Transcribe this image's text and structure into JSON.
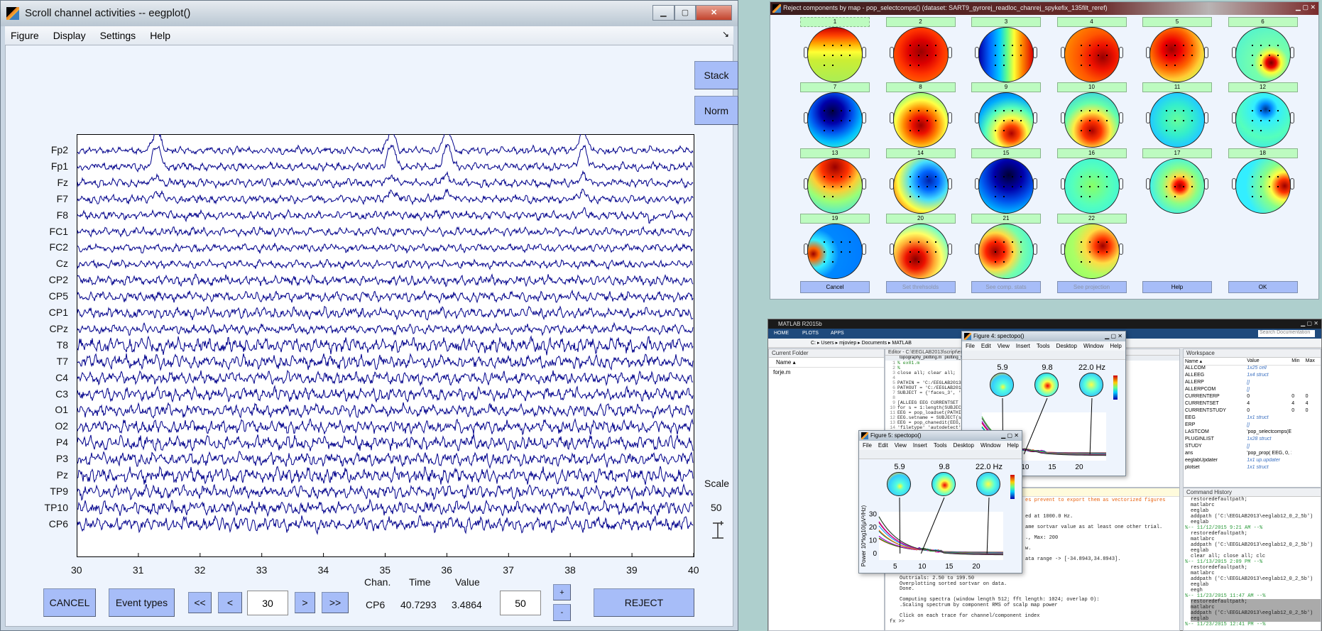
{
  "eegplot": {
    "title": "Scroll channel activities -- eegplot()",
    "menu": [
      "Figure",
      "Display",
      "Settings",
      "Help"
    ],
    "stack_label": "Stack",
    "norm_label": "Norm",
    "channels": [
      "Fp2",
      "Fp1",
      "Fz",
      "F7",
      "F8",
      "FC1",
      "FC2",
      "Cz",
      "CP2",
      "CP5",
      "CP1",
      "CPz",
      "T8",
      "T7",
      "C4",
      "C3",
      "O1",
      "O2",
      "P4",
      "P3",
      "Pz",
      "TP9",
      "TP10",
      "CP6"
    ],
    "x_ticks": [
      "30",
      "31",
      "32",
      "33",
      "34",
      "35",
      "36",
      "37",
      "38",
      "39",
      "40"
    ],
    "trace_color": "#00008b",
    "scale_label": "Scale",
    "scale_value": "50",
    "cancel_label": "CANCEL",
    "event_types_label": "Event types",
    "first_label": "<<",
    "prev_label": "<",
    "time_input": "30",
    "next_label": ">",
    "last_label": ">>",
    "chan_header": "Chan.",
    "time_header": "Time",
    "value_header": "Value",
    "chan_value": "CP6",
    "time_value": "40.7293",
    "value_value": "3.4864",
    "scale_input": "50",
    "plus_label": "+",
    "minus_label": "-",
    "reject_label": "REJECT"
  },
  "reject_window": {
    "title": "Reject components by map - pop_selectcomps() (dataset: SART9_gyrorej_readloc_chanrej_spykefix_135filt_reref)",
    "components": [
      "1",
      "2",
      "3",
      "4",
      "5",
      "6",
      "7",
      "8",
      "9",
      "10",
      "11",
      "12",
      "13",
      "14",
      "15",
      "16",
      "17",
      "18",
      "19",
      "20",
      "21",
      "22"
    ],
    "buttons": [
      "Cancel",
      "Set threhsolds",
      "See comp. stats",
      "See projection",
      "Help",
      "OK"
    ]
  },
  "matlab": {
    "title": "MATLAB R2015b",
    "tabs": [
      "HOME",
      "PLOTS",
      "APPS"
    ],
    "search_placeholder": "Search Documentation",
    "address": "C: ▸ Users ▸ mjoviep ▸ Documents ▸ MATLAB",
    "current_folder": {
      "title": "Current Folder",
      "col": "Name ▴",
      "files": [
        "forje.m"
      ]
    },
    "editor": {
      "title": "Editor - C:\\EEGLAB2013\\script\\ex01.m",
      "tabs": [
        "topography_plotting.m",
        "plotting_s"
      ],
      "lines": [
        "% ex01.m",
        "%",
        "close all; clear all;",
        "",
        "PATHIN = 'C:/EEGLAB2013",
        "PATHOUT = 'C:/EEGLAB201",
        "SUBJECT = {'faces_3', '",
        "",
        "[ALLEEG EEG CURRENTSET",
        "for s = 1:length(SUBJEC",
        "EEG = pop_loadset(PATHI",
        "EEG.setname = SUBJECT{s",
        "EEG = pop_chanedit(EEG,",
        "'filetype' 'autodetect'"
      ]
    },
    "workspace": {
      "title": "Workspace",
      "columns": [
        "Name ▴",
        "Value",
        "Min",
        "Max"
      ],
      "rows": [
        [
          "ALLCOM",
          "1x25 cell",
          "",
          ""
        ],
        [
          "ALLEEG",
          "1x4 struct",
          "",
          ""
        ],
        [
          "ALLERP",
          "[]",
          "",
          ""
        ],
        [
          "ALLERPCOM",
          "[]",
          "",
          ""
        ],
        [
          "CURRENTERP",
          "0",
          "0",
          "0"
        ],
        [
          "CURRENTSET",
          "4",
          "4",
          "4"
        ],
        [
          "CURRENTSTUDY",
          "0",
          "0",
          "0"
        ],
        [
          "EEG",
          "1x1 struct",
          "",
          ""
        ],
        [
          "ERP",
          "[]",
          "",
          ""
        ],
        [
          "LASTCOM",
          "'pop_selectcomps(EE...",
          "",
          ""
        ],
        [
          "PLUGINLIST",
          "1x28 struct",
          "",
          ""
        ],
        [
          "STUDY",
          "[]",
          "",
          ""
        ],
        [
          "ans",
          "'pop_prop( EEG, 0, 1, ...",
          "",
          ""
        ],
        [
          "eeglabUpdater",
          "1x1 up.updater",
          "",
          ""
        ],
        [
          "plotset",
          "1x1 struct",
          "",
          ""
        ]
      ]
    },
    "command_window": {
      "partial_lines": [
        "es prevent to export them as vectorized figures",
        "",
        "",
        "ed at 1000.0 Hz.",
        "",
        "ame sortvar value as at least one other trial.",
        "",
        "., Max: 200",
        "",
        "w.",
        "",
        "ata range -> [-34.8943,34.8943].",
        "",
        ""
      ],
      "lines": [
        "Outtrials: 2.50 to 199.50",
        "Overplotting sorted sortvar on data.",
        "Done.",
        "",
        "Computing spectra (window length 512; fft length: 1024; overlap 0):",
        ".Scaling spectrum by component RMS of scalp map power",
        "",
        "Click on each trace for channel/component index"
      ],
      "prompt": "fx >>"
    },
    "command_history": {
      "title": "Command History",
      "lines": [
        "restoredefaultpath;",
        "matlabrc",
        "eeglab",
        "addpath ('C:\\EEGLAB2013\\eeglab12_0_2_5b')",
        "eeglab",
        "%-- 11/12/2015 9:21 AM --%",
        "restoredefaultpath;",
        "matlabrc",
        "addpath ('C:\\EEGLAB2013\\eeglab12_0_2_5b')",
        "eeglab",
        "clear all; close all; clc",
        "%-- 11/13/2015 2:09 PM --%",
        "restoredefaultpath;",
        "matlabrc",
        "addpath ('C:\\EEGLAB2013\\eeglab12_0_2_5b')",
        "eeglab",
        "eegh",
        "%-- 11/23/2015 11:47 AM --%",
        "restoredefaultpath;",
        "matlabrc",
        "addpath ('C:\\EEGLAB2013\\eeglab12_0_2_5b')",
        "eeglab",
        "%-- 11/23/2015 12:41 PM --%"
      ]
    }
  },
  "figures": [
    {
      "title": "Figure 4: spectopo()",
      "freqs": [
        "5.9",
        "9.8",
        "22.0 Hz"
      ]
    },
    {
      "title": "Figure 5: spectopo()",
      "freqs": [
        "5.9",
        "9.8",
        "22.0 Hz"
      ],
      "ylabel": "Power 10*log10(μV²/Hz)",
      "y_ticks": [
        "0",
        "10",
        "20",
        "30"
      ]
    }
  ],
  "figure_menu": [
    "File",
    "Edit",
    "View",
    "Insert",
    "Tools",
    "Desktop",
    "Window",
    "Help"
  ],
  "spectra_x_ticks": [
    "5",
    "10",
    "15",
    "20"
  ]
}
